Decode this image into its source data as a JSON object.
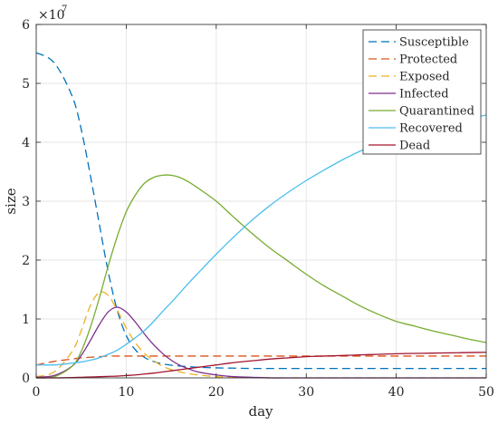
{
  "chart_data": {
    "type": "line",
    "title": "",
    "xlabel": "day",
    "ylabel": "size",
    "xlim": [
      0,
      50
    ],
    "ylim": [
      0,
      6
    ],
    "y_multiplier": "×10",
    "y_multiplier_exponent": "7",
    "x_ticks": [
      0,
      10,
      20,
      30,
      40,
      50
    ],
    "y_ticks": [
      0,
      1,
      2,
      3,
      4,
      5,
      6
    ],
    "grid": true,
    "legend_position": "top-right",
    "x": [
      0,
      2,
      4,
      5,
      6,
      7,
      8,
      9,
      10,
      11,
      12,
      13,
      14,
      15,
      16,
      17,
      18,
      20,
      22,
      24,
      26,
      28,
      30,
      32,
      34,
      36,
      38,
      40,
      42,
      44,
      46,
      48,
      50
    ],
    "series": [
      {
        "name": "Susceptible",
        "color": "#0072BD",
        "dash": true,
        "values": [
          5.52,
          5.35,
          4.78,
          4.22,
          3.45,
          2.62,
          1.8,
          1.15,
          0.72,
          0.48,
          0.35,
          0.28,
          0.24,
          0.215,
          0.2,
          0.19,
          0.18,
          0.17,
          0.165,
          0.16,
          0.16,
          0.16,
          0.16,
          0.16,
          0.16,
          0.16,
          0.16,
          0.16,
          0.16,
          0.16,
          0.16,
          0.16,
          0.16
        ]
      },
      {
        "name": "Protected",
        "color": "#D95319",
        "dash": true,
        "values": [
          0.22,
          0.28,
          0.32,
          0.34,
          0.35,
          0.36,
          0.37,
          0.37,
          0.37,
          0.37,
          0.37,
          0.37,
          0.37,
          0.37,
          0.37,
          0.37,
          0.37,
          0.37,
          0.37,
          0.37,
          0.37,
          0.37,
          0.37,
          0.37,
          0.37,
          0.37,
          0.37,
          0.37,
          0.37,
          0.37,
          0.37,
          0.37,
          0.37
        ]
      },
      {
        "name": "Exposed",
        "color": "#EDB120",
        "dash": true,
        "values": [
          0.02,
          0.1,
          0.45,
          0.8,
          1.22,
          1.45,
          1.4,
          1.15,
          0.85,
          0.6,
          0.42,
          0.3,
          0.2,
          0.14,
          0.1,
          0.07,
          0.05,
          0.02,
          0.01,
          0.005,
          0,
          0,
          0,
          0,
          0,
          0,
          0,
          0,
          0,
          0,
          0,
          0,
          0
        ]
      },
      {
        "name": "Infected",
        "color": "#7E2F8E",
        "dash": false,
        "values": [
          0.01,
          0.04,
          0.2,
          0.38,
          0.63,
          0.9,
          1.12,
          1.2,
          1.12,
          0.95,
          0.75,
          0.57,
          0.42,
          0.3,
          0.21,
          0.15,
          0.1,
          0.05,
          0.02,
          0.01,
          0,
          0,
          0,
          0,
          0,
          0,
          0,
          0,
          0,
          0,
          0,
          0,
          0
        ]
      },
      {
        "name": "Quarantined",
        "color": "#77AC30",
        "dash": false,
        "values": [
          0,
          0.02,
          0.2,
          0.45,
          0.85,
          1.35,
          1.9,
          2.4,
          2.82,
          3.1,
          3.3,
          3.4,
          3.44,
          3.44,
          3.4,
          3.32,
          3.22,
          3.0,
          2.72,
          2.45,
          2.2,
          1.98,
          1.76,
          1.56,
          1.39,
          1.22,
          1.08,
          0.96,
          0.88,
          0.8,
          0.73,
          0.66,
          0.6
        ]
      },
      {
        "name": "Recovered",
        "color": "#4DBEEE",
        "dash": false,
        "values": [
          0.22,
          0.22,
          0.25,
          0.27,
          0.3,
          0.34,
          0.4,
          0.47,
          0.57,
          0.68,
          0.8,
          0.95,
          1.12,
          1.28,
          1.45,
          1.62,
          1.78,
          2.1,
          2.4,
          2.68,
          2.93,
          3.15,
          3.35,
          3.53,
          3.7,
          3.85,
          3.98,
          4.1,
          4.2,
          4.28,
          4.36,
          4.41,
          4.46
        ]
      },
      {
        "name": "Dead",
        "color": "#A2142F",
        "dash": false,
        "values": [
          0,
          0,
          0.005,
          0.01,
          0.015,
          0.02,
          0.025,
          0.03,
          0.04,
          0.05,
          0.065,
          0.08,
          0.1,
          0.12,
          0.14,
          0.16,
          0.18,
          0.22,
          0.26,
          0.29,
          0.32,
          0.34,
          0.36,
          0.37,
          0.38,
          0.39,
          0.4,
          0.41,
          0.415,
          0.42,
          0.425,
          0.43,
          0.435
        ]
      }
    ]
  }
}
